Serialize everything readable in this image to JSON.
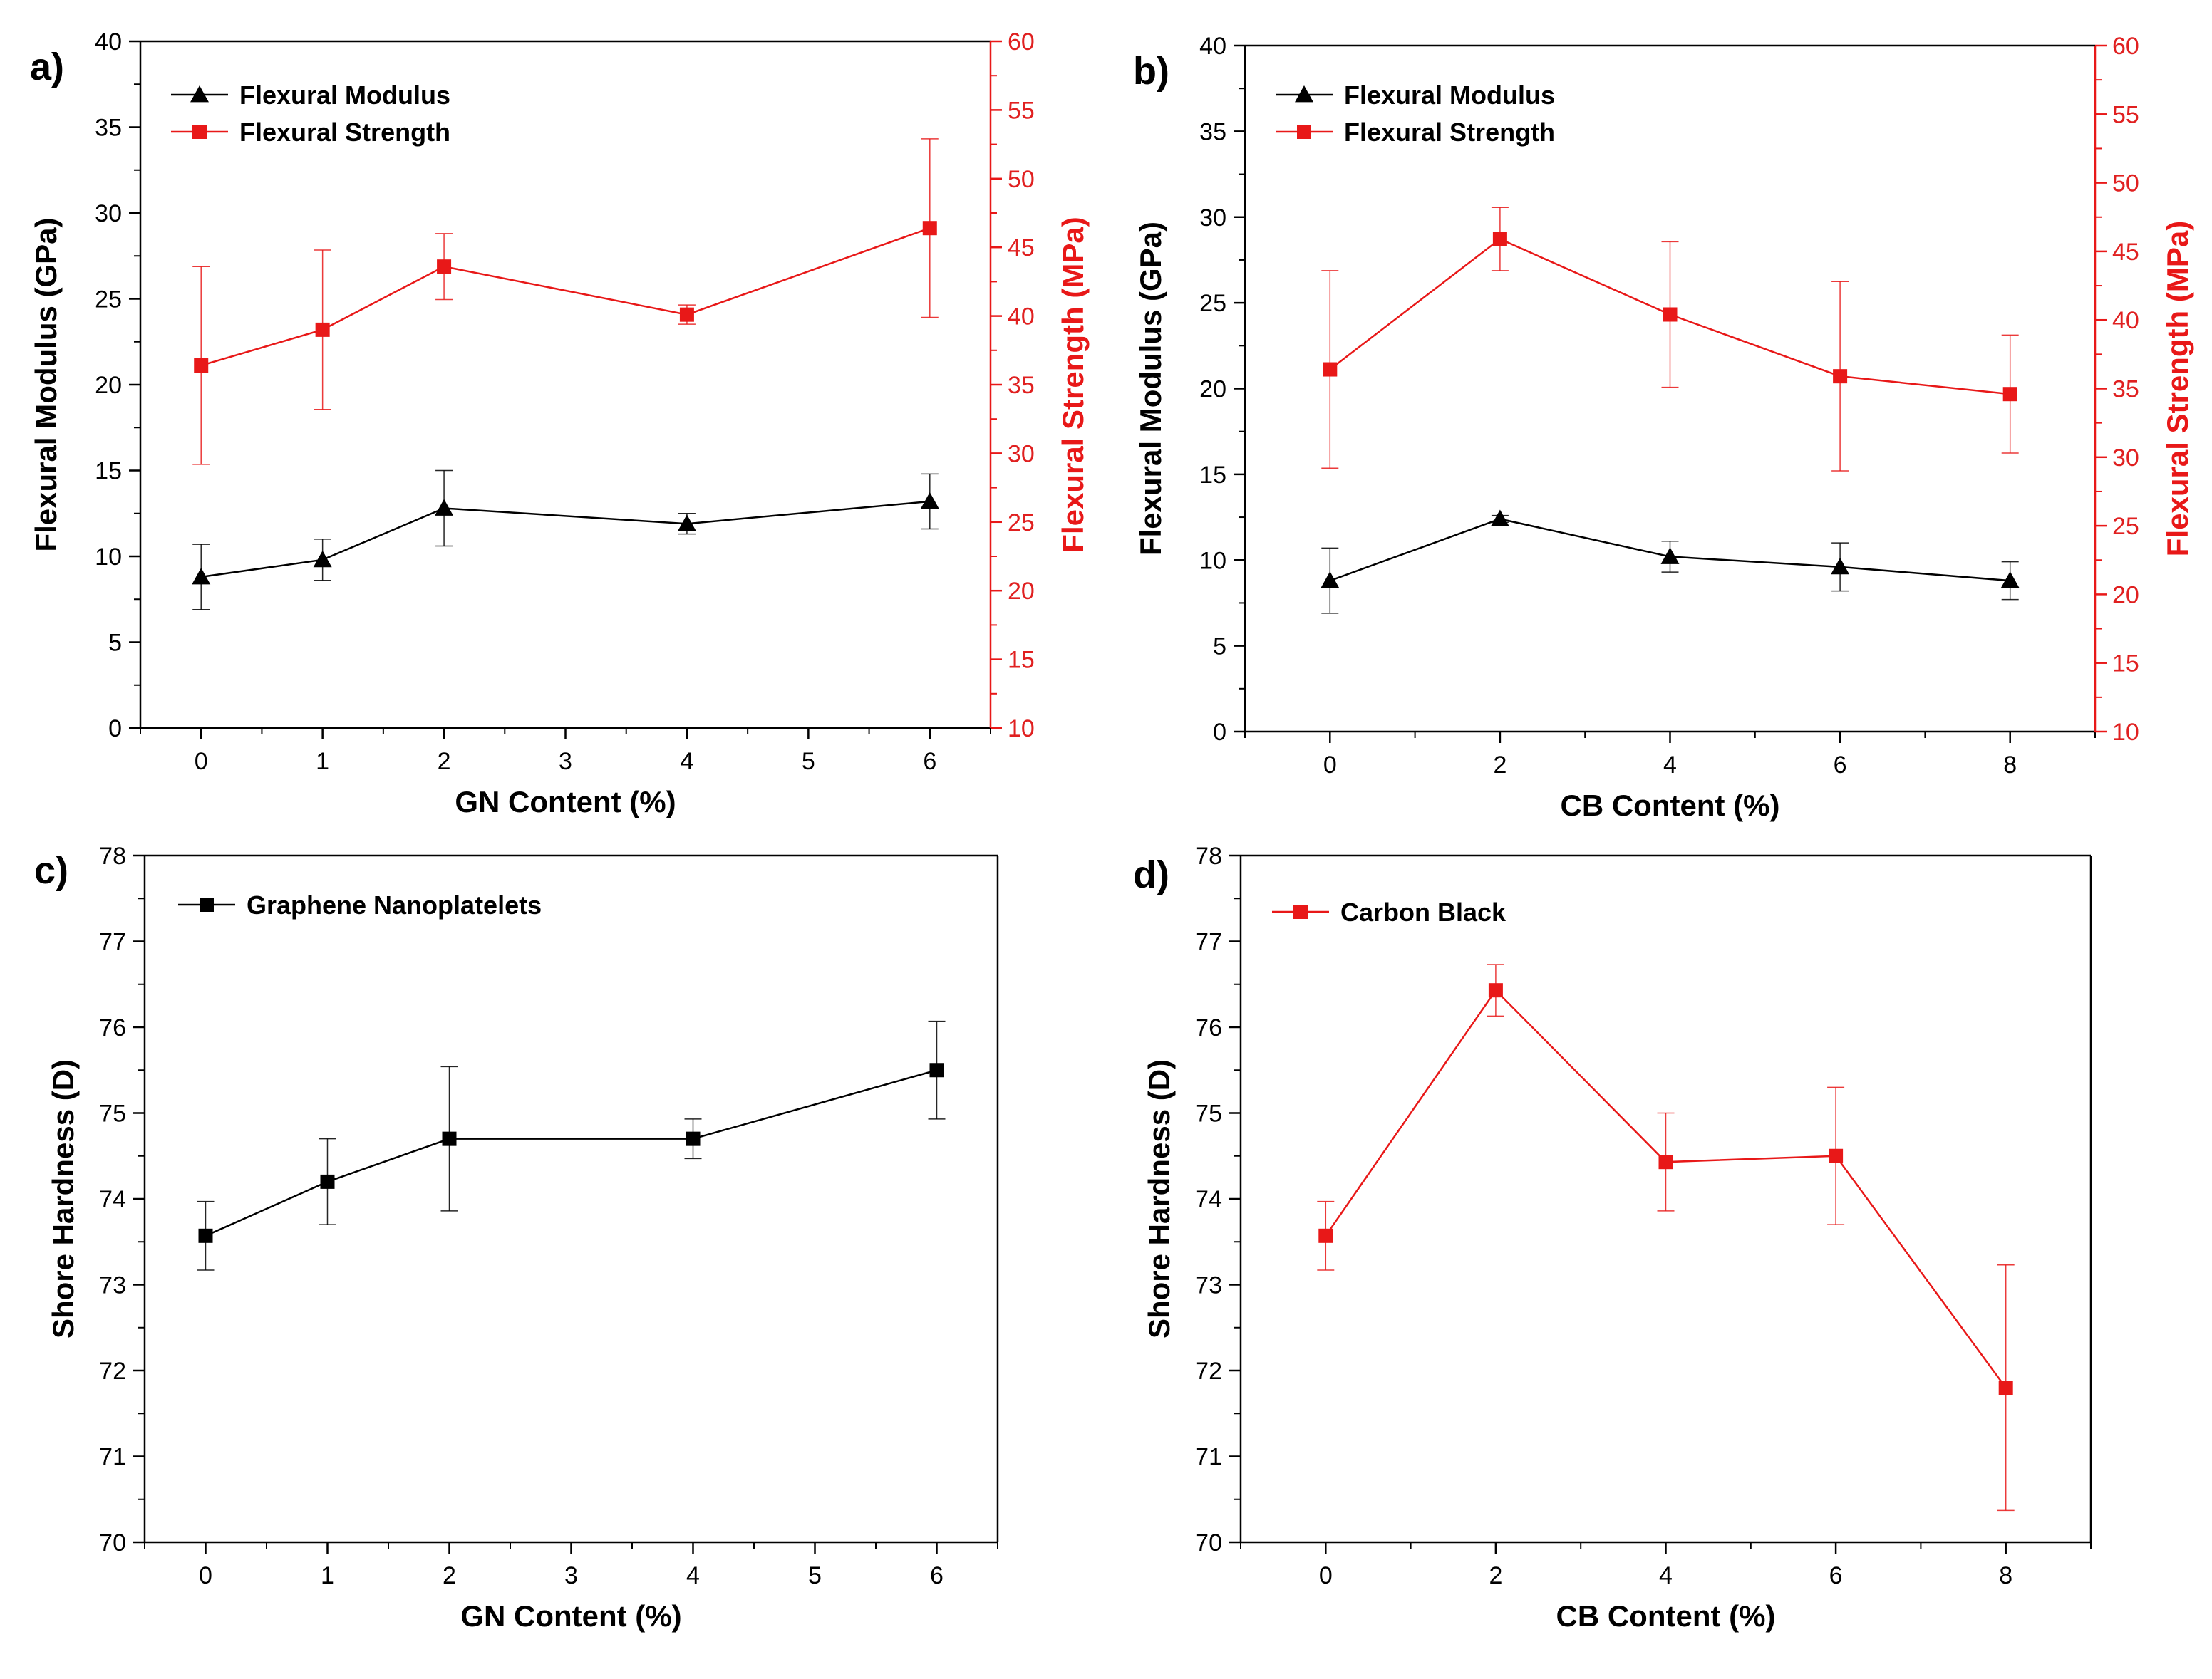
{
  "chart_data": [
    {
      "panel": "a)",
      "type": "line",
      "dual_axis": true,
      "x_axis": {
        "label": "GN Content (%)",
        "range": [
          -0.5,
          6.5
        ],
        "ticks": [
          0,
          1,
          2,
          3,
          4,
          5,
          6
        ]
      },
      "y_left": {
        "label": "Flexural Modulus (GPa)",
        "range": [
          0,
          40
        ],
        "ticks": [
          0,
          5,
          10,
          15,
          20,
          25,
          30,
          35,
          40
        ],
        "color": "#000000"
      },
      "y_right": {
        "label": "Flexural Strength (MPa)",
        "range": [
          10,
          60
        ],
        "ticks": [
          10,
          15,
          20,
          25,
          30,
          35,
          40,
          45,
          50,
          55,
          60
        ],
        "color": "#e81818"
      },
      "legend": {
        "position": "top-left"
      },
      "series": [
        {
          "name": "Flexural Modulus",
          "axis": "left",
          "marker": "triangle",
          "color": "#000000",
          "x": [
            0,
            1,
            2,
            4,
            6
          ],
          "y": [
            8.8,
            9.8,
            12.8,
            11.9,
            13.2
          ],
          "err": [
            1.9,
            1.2,
            2.2,
            0.6,
            1.6
          ]
        },
        {
          "name": "Flexural Strength",
          "axis": "right",
          "marker": "square",
          "color": "#e81818",
          "x": [
            0,
            1,
            2,
            4,
            6
          ],
          "y": [
            36.4,
            39.0,
            43.6,
            40.1,
            46.4
          ],
          "err": [
            7.2,
            5.8,
            2.4,
            0.7,
            6.5
          ]
        }
      ]
    },
    {
      "panel": "b)",
      "type": "line",
      "dual_axis": true,
      "x_axis": {
        "label": "CB Content (%)",
        "range": [
          -1,
          9
        ],
        "ticks": [
          0,
          2,
          4,
          6,
          8
        ]
      },
      "y_left": {
        "label": "Flexural Modulus (GPa)",
        "range": [
          0,
          40
        ],
        "ticks": [
          0,
          5,
          10,
          15,
          20,
          25,
          30,
          35,
          40
        ],
        "color": "#000000"
      },
      "y_right": {
        "label": "Flexural Strength (MPa)",
        "range": [
          10,
          60
        ],
        "ticks": [
          10,
          15,
          20,
          25,
          30,
          35,
          40,
          45,
          50,
          55,
          60
        ],
        "color": "#e81818"
      },
      "legend": {
        "position": "top-left"
      },
      "series": [
        {
          "name": "Flexural Modulus",
          "axis": "left",
          "marker": "triangle",
          "color": "#000000",
          "x": [
            0,
            2,
            4,
            6,
            8
          ],
          "y": [
            8.8,
            12.4,
            10.2,
            9.6,
            8.8
          ],
          "err": [
            1.9,
            0.2,
            0.9,
            1.4,
            1.1
          ]
        },
        {
          "name": "Flexural Strength",
          "axis": "right",
          "marker": "square",
          "color": "#e81818",
          "x": [
            0,
            2,
            4,
            6,
            8
          ],
          "y": [
            36.4,
            45.9,
            40.4,
            35.9,
            34.6
          ],
          "err": [
            7.2,
            2.3,
            5.3,
            6.9,
            4.3
          ]
        }
      ]
    },
    {
      "panel": "c)",
      "type": "line",
      "dual_axis": false,
      "x_axis": {
        "label": "GN Content (%)",
        "range": [
          -0.5,
          6.5
        ],
        "ticks": [
          0,
          1,
          2,
          3,
          4,
          5,
          6
        ]
      },
      "y_left": {
        "label": "Shore Hardness (D)",
        "range": [
          70,
          78
        ],
        "ticks": [
          70,
          71,
          72,
          73,
          74,
          75,
          76,
          77,
          78
        ],
        "color": "#000000"
      },
      "legend": {
        "position": "top-left"
      },
      "series": [
        {
          "name": "Graphene Nanoplatelets",
          "axis": "left",
          "marker": "square",
          "color": "#000000",
          "x": [
            0,
            1,
            2,
            4,
            6
          ],
          "y": [
            73.57,
            74.2,
            74.7,
            74.7,
            75.5
          ],
          "err": [
            0.4,
            0.5,
            0.84,
            0.23,
            0.57
          ]
        }
      ]
    },
    {
      "panel": "d)",
      "type": "line",
      "dual_axis": false,
      "x_axis": {
        "label": "CB Content (%)",
        "range": [
          -1,
          9
        ],
        "ticks": [
          0,
          2,
          4,
          6,
          8
        ]
      },
      "y_left": {
        "label": "Shore Hardness (D)",
        "range": [
          70,
          78
        ],
        "ticks": [
          70,
          71,
          72,
          73,
          74,
          75,
          76,
          77,
          78
        ],
        "color": "#000000"
      },
      "legend": {
        "position": "top-left"
      },
      "series": [
        {
          "name": "Carbon Black",
          "axis": "left",
          "marker": "square",
          "color": "#e81818",
          "x": [
            0,
            2,
            4,
            6,
            8
          ],
          "y": [
            73.57,
            76.43,
            74.43,
            74.5,
            71.8
          ],
          "err": [
            0.4,
            0.3,
            0.57,
            0.8,
            1.43
          ]
        }
      ]
    }
  ]
}
